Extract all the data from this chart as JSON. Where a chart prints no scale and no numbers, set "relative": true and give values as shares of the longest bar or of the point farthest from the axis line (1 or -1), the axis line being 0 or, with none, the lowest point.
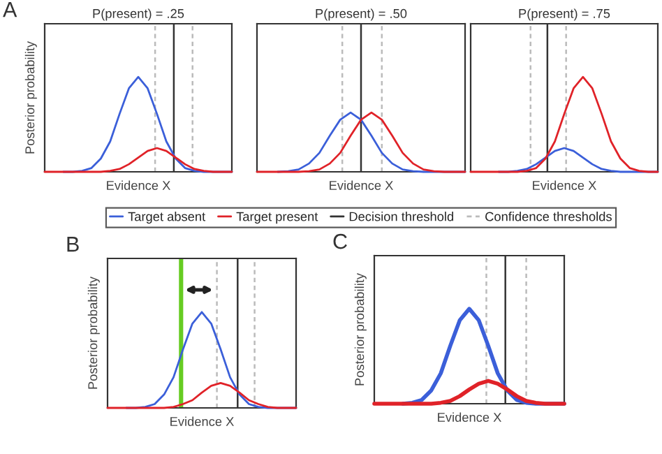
{
  "chart_data": [
    {
      "type": "line",
      "relative": true,
      "title": "P(present) = .25",
      "xlabel": "Evidence X",
      "ylabel": "Posterior probability",
      "annotations": [
        "A"
      ],
      "categories": [
        null,
        null,
        null,
        null,
        null,
        null,
        null,
        null,
        null,
        null,
        null,
        null,
        null,
        null,
        null,
        null,
        null,
        null,
        null,
        null,
        null
      ],
      "series": [
        {
          "color": "#3b5fd9",
          "values": [
            null,
            null,
            0,
            0,
            0.01,
            0.04,
            0.14,
            0.32,
            0.61,
            0.88,
            1,
            0.88,
            0.61,
            0.32,
            0.14,
            0.04,
            0.01,
            0,
            0,
            0,
            0
          ]
        },
        {
          "color": "#e02228",
          "values": [
            0,
            0,
            0,
            0,
            0,
            0,
            0,
            0.01,
            0.03,
            0.08,
            0.15,
            0.22,
            0.25,
            0.22,
            0.15,
            0.08,
            0.03,
            0.01,
            0,
            0,
            0
          ]
        }
      ],
      "ref_lines": [
        {
          "axis": "x",
          "color": "#bbbbbb",
          "line_style": "dashed"
        },
        {
          "axis": "x",
          "color": "#bbbbbb",
          "line_style": "dashed"
        },
        {
          "axis": "x",
          "color": "#333333",
          "line_style": "solid"
        }
      ]
    },
    {
      "type": "line",
      "relative": true,
      "title": "P(present) = .50",
      "xlabel": "Evidence X",
      "legend": "bottom",
      "categories": [
        null,
        null,
        null,
        null,
        null,
        null,
        null,
        null,
        null,
        null,
        null,
        null,
        null,
        null,
        null,
        null,
        null,
        null,
        null,
        null,
        null
      ],
      "series": [
        {
          "name": "Target absent",
          "color": "#3b5fd9",
          "values": [
            null,
            null,
            0,
            0.01,
            0.04,
            0.14,
            0.32,
            0.61,
            0.88,
            1,
            0.88,
            0.61,
            0.32,
            0.14,
            0.04,
            0.01,
            0,
            0,
            0,
            0,
            0
          ]
        },
        {
          "name": "Target present",
          "color": "#e02228",
          "values": [
            0,
            0,
            0,
            0,
            0,
            0.01,
            0.04,
            0.14,
            0.32,
            0.61,
            0.88,
            1,
            0.88,
            0.61,
            0.32,
            0.14,
            0.04,
            0.01,
            0,
            0,
            0
          ]
        }
      ],
      "ref_lines": [
        {
          "axis": "x",
          "color": "#333333",
          "line_style": "solid",
          "label": "Decision threshold"
        },
        {
          "axis": "x",
          "color": "#bbbbbb",
          "line_style": "dashed",
          "label": "Confidence thresholds"
        },
        {
          "axis": "x",
          "color": "#bbbbbb",
          "line_style": "dashed"
        }
      ]
    },
    {
      "type": "line",
      "relative": true,
      "title": "P(present) = .75",
      "xlabel": "Evidence X",
      "categories": [
        null,
        null,
        null,
        null,
        null,
        null,
        null,
        null,
        null,
        null,
        null,
        null,
        null,
        null,
        null,
        null,
        null,
        null,
        null,
        null,
        null
      ],
      "series": [
        {
          "color": "#3b5fd9",
          "values": [
            null,
            null,
            null,
            0,
            0,
            0.01,
            0.03,
            0.08,
            0.15,
            0.22,
            0.25,
            0.22,
            0.15,
            0.08,
            0.03,
            0.01,
            0,
            0,
            0,
            0,
            0
          ]
        },
        {
          "color": "#e02228",
          "values": [
            0,
            0,
            0,
            0,
            0,
            0,
            0.01,
            0.04,
            0.14,
            0.32,
            0.61,
            0.88,
            1,
            0.88,
            0.61,
            0.32,
            0.14,
            0.04,
            0.01,
            0,
            0
          ]
        }
      ],
      "ref_lines": [
        {
          "axis": "x",
          "color": "#bbbbbb",
          "line_style": "dashed"
        },
        {
          "axis": "x",
          "color": "#bbbbbb",
          "line_style": "dashed"
        },
        {
          "axis": "x",
          "color": "#333333",
          "line_style": "solid"
        }
      ]
    },
    {
      "type": "line",
      "relative": true,
      "xlabel": "Evidence X",
      "ylabel": "Posterior probability",
      "annotations": [
        "B"
      ],
      "categories": [
        null,
        null,
        null,
        null,
        null,
        null,
        null,
        null,
        null,
        null,
        null,
        null,
        null,
        null,
        null,
        null,
        null,
        null,
        null,
        null,
        null
      ],
      "series": [
        {
          "color": "#3b5fd9",
          "values": [
            null,
            null,
            0,
            0,
            0.01,
            0.04,
            0.14,
            0.32,
            0.61,
            0.88,
            1,
            0.88,
            0.61,
            0.32,
            0.14,
            0.04,
            0.01,
            0,
            0,
            0,
            0
          ]
        },
        {
          "color": "#e02228",
          "values": [
            0,
            0,
            0,
            0,
            0,
            0,
            0,
            0.01,
            0.04,
            0.08,
            0.16,
            0.23,
            0.26,
            0.23,
            0.16,
            0.08,
            0.04,
            0.01,
            0,
            0,
            0
          ]
        }
      ],
      "ref_lines": [
        {
          "axis": "x",
          "color": "#bbbbbb",
          "line_style": "dashed"
        },
        {
          "axis": "x",
          "color": "#bbbbbb",
          "line_style": "dashed"
        },
        {
          "axis": "x",
          "color": "#333333",
          "line_style": "solid"
        },
        {
          "axis": "x",
          "color": "#66cc22",
          "line_style": "solid"
        }
      ]
    },
    {
      "type": "line",
      "relative": true,
      "xlabel": "Evidence X",
      "ylabel": "Posterior probability",
      "annotations": [
        "C"
      ],
      "categories": [
        null,
        null,
        null,
        null,
        null,
        null,
        null,
        null,
        null,
        null,
        null,
        null,
        null,
        null,
        null,
        null,
        null,
        null,
        null,
        null,
        null
      ],
      "series": [
        {
          "color": "#e02228",
          "values": [
            0,
            0,
            0,
            0,
            0,
            0,
            0,
            0.01,
            0.03,
            0.08,
            0.15,
            0.21,
            0.24,
            0.21,
            0.15,
            0.08,
            0.03,
            0.01,
            0,
            0,
            0
          ]
        },
        {
          "color": "#3b5fd9",
          "values": [
            null,
            null,
            null,
            0,
            0.01,
            0.04,
            0.14,
            0.32,
            0.61,
            0.88,
            1,
            0.88,
            0.61,
            0.32,
            0.14,
            0.04,
            0.01,
            0,
            0,
            0,
            0
          ]
        }
      ],
      "ref_lines": [
        {
          "axis": "x",
          "color": "#bbbbbb",
          "line_style": "dashed"
        },
        {
          "axis": "x",
          "color": "#bbbbbb",
          "line_style": "dashed"
        },
        {
          "axis": "x",
          "color": "#333333",
          "line_style": "solid"
        }
      ]
    }
  ]
}
